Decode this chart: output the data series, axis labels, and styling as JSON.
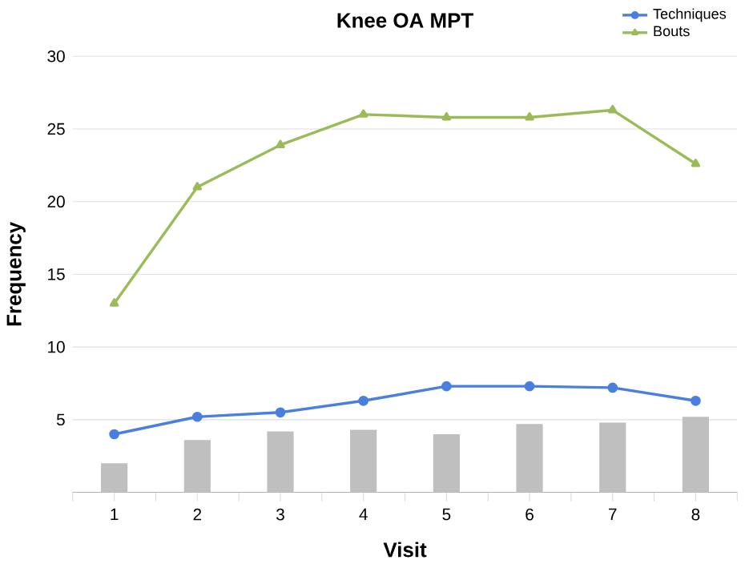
{
  "chart_data": {
    "type": "line",
    "title": "Knee OA MPT",
    "xlabel": "Visit",
    "ylabel": "Frequency",
    "categories": [
      "1",
      "2",
      "3",
      "4",
      "5",
      "6",
      "7",
      "8"
    ],
    "series": [
      {
        "type": "bar",
        "color": "#bfbfbf",
        "values": [
          2.0,
          3.6,
          4.2,
          4.3,
          4.0,
          4.7,
          4.8,
          5.2
        ]
      },
      {
        "name": "Techniques",
        "color": "#4a7fdf",
        "marker": "circle",
        "values": [
          4.0,
          5.2,
          5.5,
          6.3,
          7.3,
          7.3,
          7.2,
          6.3
        ]
      },
      {
        "name": "Bouts",
        "color": "#9bbb59",
        "marker": "triangle",
        "values": [
          13.0,
          21.0,
          23.9,
          26.0,
          25.8,
          25.8,
          26.3,
          22.6
        ]
      }
    ],
    "ylim": [
      0,
      30
    ],
    "yticks": [
      5,
      10,
      15,
      20,
      25,
      30
    ],
    "grid": "y",
    "legend": "top right"
  }
}
